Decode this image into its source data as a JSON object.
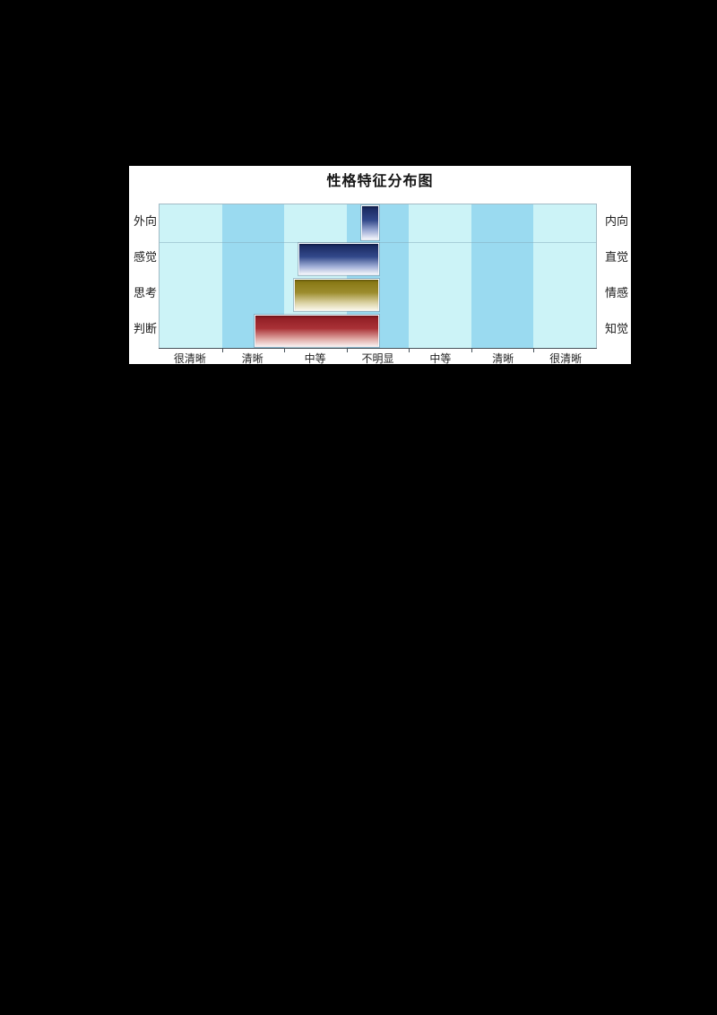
{
  "page": {
    "background_color": "#000000",
    "panel_background": "#ffffff"
  },
  "chart_data": {
    "type": "bar",
    "variant": "horizontal-diverging-profile",
    "title": "性格特征分布图",
    "x_tick_labels": [
      "很清晰",
      "清晰",
      "中等",
      "不明显",
      "中等",
      "清晰",
      "很清晰"
    ],
    "x_axis_note": "clarity scale symmetric about center; 不明显 column = 0, one column = 1 step",
    "xlim_units": [
      -3.5,
      3.5
    ],
    "legend_position": "none",
    "background_stripes": {
      "light_color": "#ccf3f7",
      "medium_color": "#9adaf0",
      "pattern": [
        "light",
        "medium",
        "light",
        "medium",
        "light",
        "medium",
        "light"
      ]
    },
    "rows": [
      {
        "left_label": "外向",
        "right_label": "内向",
        "direction": "left",
        "toward": "外向",
        "value_units": 0.26,
        "clarity": "不明显",
        "gradient": [
          "#17265c",
          "#32488a",
          "#9fadd6",
          "#f4f6fb"
        ]
      },
      {
        "left_label": "感觉",
        "right_label": "直觉",
        "direction": "left",
        "toward": "感觉",
        "value_units": 1.27,
        "clarity": "中等",
        "gradient": [
          "#17265c",
          "#32488a",
          "#9fadd6",
          "#f4f6fb"
        ]
      },
      {
        "left_label": "思考",
        "right_label": "情感",
        "direction": "left",
        "toward": "思考",
        "value_units": 1.35,
        "clarity": "中等",
        "gradient": [
          "#857510",
          "#9c8c2e",
          "#d8cf9e",
          "#faf7ea"
        ]
      },
      {
        "left_label": "判断",
        "right_label": "知觉",
        "direction": "left",
        "toward": "判断",
        "value_units": 1.97,
        "clarity": "清晰",
        "gradient": [
          "#8e1b22",
          "#a93136",
          "#dca09c",
          "#f8edec"
        ]
      }
    ]
  }
}
